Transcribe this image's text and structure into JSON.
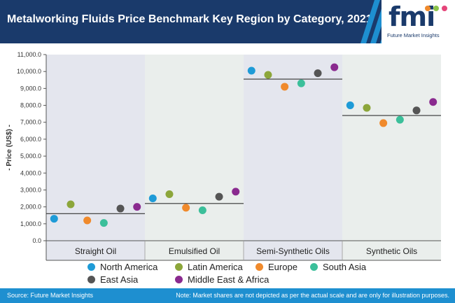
{
  "header": {
    "title": "Metalworking Fluids Price Benchmark Key Region by Category, 2021"
  },
  "logo": {
    "mark": "fmi",
    "subtitle": "Future Market Insights",
    "colors": {
      "navy": "#1a3a6b",
      "orange": "#f08a2c",
      "green": "#8bc34a",
      "blue": "#1e8fd0"
    }
  },
  "chart_data": {
    "type": "scatter",
    "title": "Metalworking Fluids Price Benchmark Key Region by Category, 2021",
    "ylabel": "- Price (US$) -",
    "xlabel": "",
    "ylim": [
      0,
      11000
    ],
    "yticks": [
      "0.0",
      "1,000.0",
      "2,000.0",
      "3,000.0",
      "4,000.0",
      "5,000.0",
      "6,000.0",
      "7,000.0",
      "8,000.0",
      "9,000.0",
      "10,000.0",
      "11,000.0"
    ],
    "grid": false,
    "legend_position": "bottom",
    "categories": [
      "Straight Oil",
      "Emulsified Oil",
      "Semi-Synthetic Oils",
      "Synthetic Oils"
    ],
    "series": [
      {
        "name": "North America",
        "color": "#1e9bd7",
        "values": [
          1300,
          2500,
          10050,
          8000
        ]
      },
      {
        "name": "Latin America",
        "color": "#8ca63a",
        "values": [
          2150,
          2750,
          9800,
          7850
        ]
      },
      {
        "name": "Europe",
        "color": "#f08a2c",
        "values": [
          1200,
          1950,
          9100,
          6950
        ]
      },
      {
        "name": "South Asia",
        "color": "#3bbf9a",
        "values": [
          1050,
          1800,
          9300,
          7150
        ]
      },
      {
        "name": "East Asia",
        "color": "#555555",
        "values": [
          1900,
          2600,
          9900,
          7700
        ]
      },
      {
        "name": "Middle East & Africa",
        "color": "#8a2a8f",
        "values": [
          2000,
          2900,
          10250,
          8200
        ]
      }
    ],
    "benchmarks": [
      1600,
      2200,
      9550,
      7400
    ],
    "band_colors": [
      "#e4e6ee",
      "#eaeeec",
      "#e4e6ee",
      "#eaeeec"
    ]
  },
  "footer": {
    "source": "Source: Future Market Insights",
    "note": "Note: Market shares are not depicted as per the actual scale and are only for illustration purposes."
  }
}
